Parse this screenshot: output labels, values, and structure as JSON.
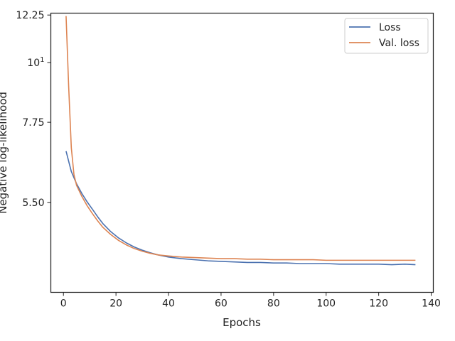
{
  "chart_data": {
    "type": "line",
    "title": "",
    "xlabel": "Epochs",
    "ylabel": "Negative log-likelihood",
    "xlim": [
      -4.8,
      140.8
    ],
    "ylim": [
      3.75,
      12.35
    ],
    "y_scale": "log",
    "grid": false,
    "legend_position": "top-right",
    "xticks": [
      0,
      20,
      40,
      60,
      80,
      100,
      120,
      140
    ],
    "xtick_labels": [
      "0",
      "20",
      "40",
      "60",
      "80",
      "100",
      "120",
      "140"
    ],
    "yticks": [
      12.25,
      10,
      7.75,
      5.5
    ],
    "ytick_labels": [
      "12.25",
      "10",
      "7.75",
      "5.50"
    ],
    "ytick_superscripts": [
      "",
      "1",
      "",
      ""
    ],
    "series": [
      {
        "name": "Loss",
        "color": "#4c72b0",
        "x": [
          1,
          3,
          5,
          7,
          9,
          11,
          13,
          15,
          18,
          21,
          24,
          27,
          30,
          33,
          36,
          40,
          45,
          50,
          55,
          60,
          65,
          70,
          75,
          80,
          85,
          90,
          95,
          100,
          105,
          110,
          115,
          120,
          125,
          130,
          134
        ],
        "y": [
          6.85,
          6.28,
          5.96,
          5.72,
          5.52,
          5.35,
          5.18,
          5.03,
          4.86,
          4.73,
          4.63,
          4.55,
          4.49,
          4.44,
          4.4,
          4.36,
          4.33,
          4.31,
          4.29,
          4.28,
          4.27,
          4.26,
          4.26,
          4.25,
          4.25,
          4.24,
          4.24,
          4.24,
          4.23,
          4.23,
          4.23,
          4.23,
          4.22,
          4.23,
          4.22
        ]
      },
      {
        "name": "Val. loss",
        "color": "#dd8452",
        "x": [
          1,
          2,
          3,
          4,
          5,
          7,
          9,
          11,
          13,
          15,
          18,
          21,
          24,
          27,
          30,
          33,
          36,
          40,
          45,
          50,
          55,
          60,
          65,
          70,
          75,
          80,
          85,
          90,
          95,
          100,
          105,
          110,
          115,
          120,
          125,
          130,
          134
        ],
        "y": [
          12.2,
          9.0,
          6.95,
          6.2,
          5.92,
          5.65,
          5.43,
          5.25,
          5.09,
          4.95,
          4.8,
          4.68,
          4.59,
          4.52,
          4.47,
          4.43,
          4.4,
          4.38,
          4.36,
          4.35,
          4.34,
          4.33,
          4.33,
          4.32,
          4.32,
          4.31,
          4.31,
          4.31,
          4.31,
          4.3,
          4.3,
          4.3,
          4.3,
          4.3,
          4.3,
          4.3,
          4.3
        ]
      }
    ]
  }
}
